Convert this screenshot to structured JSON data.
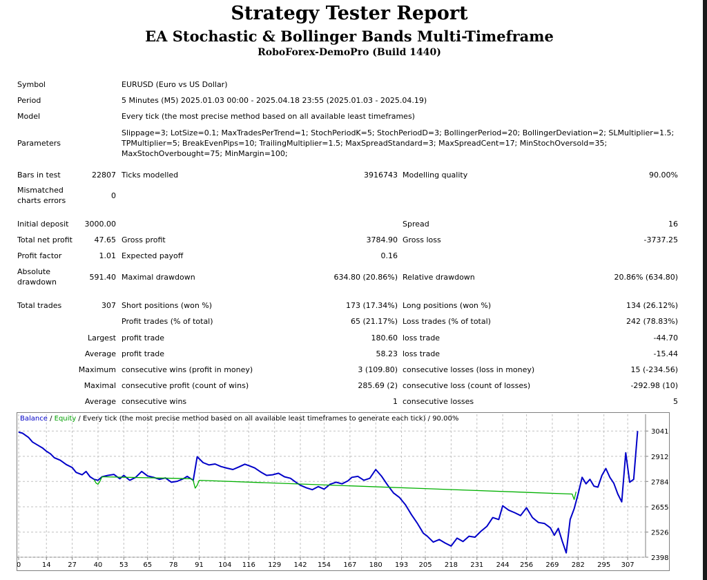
{
  "header": {
    "title": "Strategy Tester Report",
    "subtitle": "EA Stochastic & Bollinger Bands Multi-Timeframe",
    "broker": "RoboForex-DemoPro (Build 1440)"
  },
  "info": {
    "symbol_label": "Symbol",
    "symbol_value": "EURUSD (Euro vs US Dollar)",
    "period_label": "Period",
    "period_value": "5 Minutes (M5) 2025.01.03 00:00 - 2025.04.18 23:55 (2025.01.03 - 2025.04.19)",
    "model_label": "Model",
    "model_value": "Every tick (the most precise method based on all available least timeframes)",
    "parameters_label": "Parameters",
    "parameters_lines": [
      "Slippage=3; LotSize=0.1; MaxTradesPerTrend=1; StochPeriodK=5; StochPeriodD=3; BollingerPeriod=20; BollingerDeviation=2; SLMultiplier=1.5;",
      "TPMultiplier=5; BreakEvenPips=10; TrailingMultiplier=1.5; MaxSpreadStandard=3; MaxSpreadCent=17; MinStochOversold=35;",
      "MaxStochOverbought=75; MinMargin=100;"
    ]
  },
  "stats": {
    "bars_label": "Bars in test",
    "bars_value": "22807",
    "ticks_label": "Ticks modelled",
    "ticks_value": "3916743",
    "quality_label": "Modelling quality",
    "quality_value": "90.00%",
    "mismatch_label_1": "Mismatched",
    "mismatch_label_2": "charts errors",
    "mismatch_value": "0",
    "deposit_label": "Initial deposit",
    "deposit_value": "3000.00",
    "spread_label": "Spread",
    "spread_value": "16",
    "net_label": "Total net profit",
    "net_value": "47.65",
    "gross_profit_label": "Gross profit",
    "gross_profit_value": "3784.90",
    "gross_loss_label": "Gross loss",
    "gross_loss_value": "-3737.25",
    "pf_label": "Profit factor",
    "pf_value": "1.01",
    "ep_label": "Expected payoff",
    "ep_value": "0.16",
    "abs_dd_label_1": "Absolute",
    "abs_dd_label_2": "drawdown",
    "abs_dd_value": "591.40",
    "max_dd_label": "Maximal drawdown",
    "max_dd_value": "634.80 (20.86%)",
    "rel_dd_label": "Relative drawdown",
    "rel_dd_value": "20.86% (634.80)"
  },
  "trades": {
    "total_label": "Total trades",
    "total_value": "307",
    "short_label": "Short positions (won %)",
    "short_value": "173 (17.34%)",
    "long_label": "Long positions (won %)",
    "long_value": "134 (26.12%)",
    "profit_trades_label": "Profit trades (% of total)",
    "profit_trades_value": "65 (21.17%)",
    "loss_trades_label": "Loss trades (% of total)",
    "loss_trades_value": "242 (78.83%)",
    "largest_label": "Largest",
    "largest_profit_label": "profit trade",
    "largest_profit_value": "180.60",
    "largest_loss_label": "loss trade",
    "largest_loss_value": "-44.70",
    "average_label": "Average",
    "average_profit_label": "profit trade",
    "average_profit_value": "58.23",
    "average_loss_label": "loss trade",
    "average_loss_value": "-15.44",
    "maximum_label": "Maximum",
    "max_wins_label": "consecutive wins (profit in money)",
    "max_wins_value": "3 (109.80)",
    "max_losses_label": "consecutive losses (loss in money)",
    "max_losses_value": "15 (-234.56)",
    "maximal_label": "Maximal",
    "maximal_profit_label": "consecutive profit (count of wins)",
    "maximal_profit_value": "285.69 (2)",
    "maximal_loss_label": "consecutive loss (count of losses)",
    "maximal_loss_value": "-292.98 (10)",
    "avg_cons_label": "Average",
    "avg_wins_label": "consecutive wins",
    "avg_wins_value": "1",
    "avg_losses_label": "consecutive losses",
    "avg_losses_value": "5"
  },
  "chart": {
    "balance_label": "Balance",
    "sep1": " / ",
    "equity_label": "Equity",
    "rest_label": " / Every tick (the most precise method based on all available least timeframes to generate each tick) / 90.00%"
  },
  "chart_data": {
    "type": "line",
    "ylim": [
      2398,
      3070
    ],
    "xlim": [
      0,
      316
    ],
    "yticks": [
      3041,
      2912,
      2784,
      2655,
      2526,
      2398
    ],
    "xticks": [
      0,
      14,
      27,
      40,
      53,
      65,
      78,
      91,
      104,
      116,
      129,
      142,
      154,
      167,
      180,
      193,
      205,
      218,
      231,
      244,
      256,
      269,
      282,
      295,
      307
    ],
    "grid": true,
    "colors": {
      "balance": "#0000c8",
      "equity": "#00b000",
      "grid": "#c0c0c0"
    },
    "series": [
      {
        "name": "Balance",
        "x": [
          0,
          2,
          5,
          7,
          10,
          12,
          14,
          16,
          18,
          21,
          24,
          27,
          29,
          32,
          34,
          36,
          38,
          40,
          42,
          45,
          48,
          51,
          53,
          56,
          59,
          62,
          65,
          68,
          71,
          74,
          77,
          80,
          83,
          85,
          88,
          90,
          93,
          96,
          99,
          102,
          105,
          108,
          111,
          114,
          116,
          119,
          122,
          125,
          128,
          131,
          134,
          137,
          140,
          142,
          145,
          148,
          151,
          154,
          157,
          160,
          163,
          166,
          168,
          171,
          174,
          177,
          180,
          183,
          186,
          189,
          192,
          195,
          198,
          201,
          204,
          206,
          209,
          212,
          215,
          218,
          221,
          224,
          227,
          230,
          233,
          236,
          239,
          242,
          244,
          247,
          250,
          253,
          256,
          259,
          262,
          265,
          268,
          270,
          272,
          274,
          276,
          278,
          280,
          282,
          284,
          286,
          288,
          290,
          292,
          294,
          296,
          298,
          300,
          302,
          304,
          306,
          308,
          310,
          312
        ],
        "values": [
          3035,
          3030,
          3008,
          2985,
          2967,
          2955,
          2938,
          2925,
          2905,
          2892,
          2870,
          2855,
          2830,
          2818,
          2835,
          2808,
          2795,
          2790,
          2808,
          2815,
          2820,
          2798,
          2815,
          2790,
          2805,
          2835,
          2812,
          2805,
          2795,
          2802,
          2780,
          2785,
          2798,
          2810,
          2790,
          2910,
          2880,
          2868,
          2873,
          2860,
          2852,
          2845,
          2858,
          2872,
          2865,
          2853,
          2832,
          2815,
          2818,
          2826,
          2808,
          2800,
          2778,
          2765,
          2752,
          2742,
          2758,
          2745,
          2770,
          2780,
          2772,
          2787,
          2805,
          2810,
          2790,
          2800,
          2845,
          2810,
          2765,
          2725,
          2702,
          2665,
          2615,
          2570,
          2520,
          2505,
          2475,
          2488,
          2470,
          2455,
          2495,
          2478,
          2505,
          2500,
          2530,
          2555,
          2600,
          2590,
          2660,
          2638,
          2625,
          2610,
          2650,
          2600,
          2575,
          2570,
          2548,
          2510,
          2545,
          2480,
          2420,
          2590,
          2645,
          2720,
          2805,
          2772,
          2795,
          2760,
          2755,
          2815,
          2850,
          2805,
          2775,
          2720,
          2680,
          2930,
          2780,
          2795,
          3041
        ]
      },
      {
        "name": "Equity",
        "x": [
          38,
          39,
          40,
          41,
          42,
          87,
          88,
          89,
          90,
          91,
          279,
          280,
          281
        ],
        "values": [
          2795,
          2776,
          2770,
          2785,
          2808,
          2798,
          2788,
          2750,
          2765,
          2790,
          2720,
          2692,
          2732
        ]
      }
    ]
  }
}
